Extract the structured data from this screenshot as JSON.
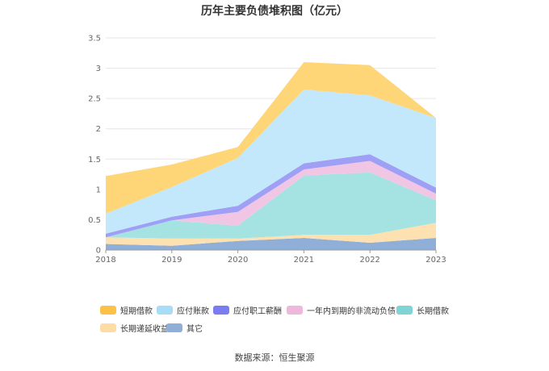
{
  "chart_data": {
    "type": "area",
    "title": "历年主要负债堆积图（亿元）",
    "categories": [
      "2018",
      "2019",
      "2020",
      "2021",
      "2022",
      "2023"
    ],
    "yticks": [
      "0",
      "0.5",
      "1",
      "1.5",
      "2",
      "2.5",
      "3",
      "3.5"
    ],
    "ylim": [
      0,
      3.5
    ],
    "grid": true,
    "legend_position": "bottom",
    "series": [
      {
        "name": "其它",
        "color": "#8fafd9",
        "values": [
          0.1,
          0.07,
          0.15,
          0.2,
          0.12,
          0.2
        ]
      },
      {
        "name": "长期递延收益",
        "color": "#fde1b0",
        "values": [
          0.11,
          0.12,
          0.04,
          0.05,
          0.13,
          0.25
        ]
      },
      {
        "name": "长期借款",
        "color": "#a5e3e3",
        "values": [
          0.0,
          0.3,
          0.21,
          0.98,
          1.03,
          0.37
        ]
      },
      {
        "name": "一年内到期的非流动负债",
        "color": "#f0c6e4",
        "values": [
          0.0,
          0.0,
          0.23,
          0.1,
          0.19,
          0.11
        ]
      },
      {
        "name": "应付职工薪酬",
        "color": "#9e9ff5",
        "values": [
          0.06,
          0.06,
          0.1,
          0.1,
          0.11,
          0.1
        ]
      },
      {
        "name": "应付账款",
        "color": "#c3e8fb",
        "values": [
          0.33,
          0.49,
          0.79,
          1.22,
          0.97,
          1.15
        ]
      },
      {
        "name": "短期借款",
        "color": "#ffd677",
        "values": [
          0.62,
          0.37,
          0.18,
          0.45,
          0.5,
          0.0
        ]
      }
    ]
  },
  "legend": [
    {
      "label": "短期借款",
      "color": "#fbc247"
    },
    {
      "label": "应付账款",
      "color": "#a8dcf7"
    },
    {
      "label": "应付职工薪酬",
      "color": "#7b7cf2"
    },
    {
      "label": "一年内到期的非流动负债",
      "color": "#edb8dc"
    },
    {
      "label": "长期借款",
      "color": "#7fd4d4"
    },
    {
      "label": "长期递延收益",
      "color": "#fddda3"
    },
    {
      "label": "其它",
      "color": "#8fafd9"
    }
  ],
  "source": "数据来源：恒生聚源"
}
